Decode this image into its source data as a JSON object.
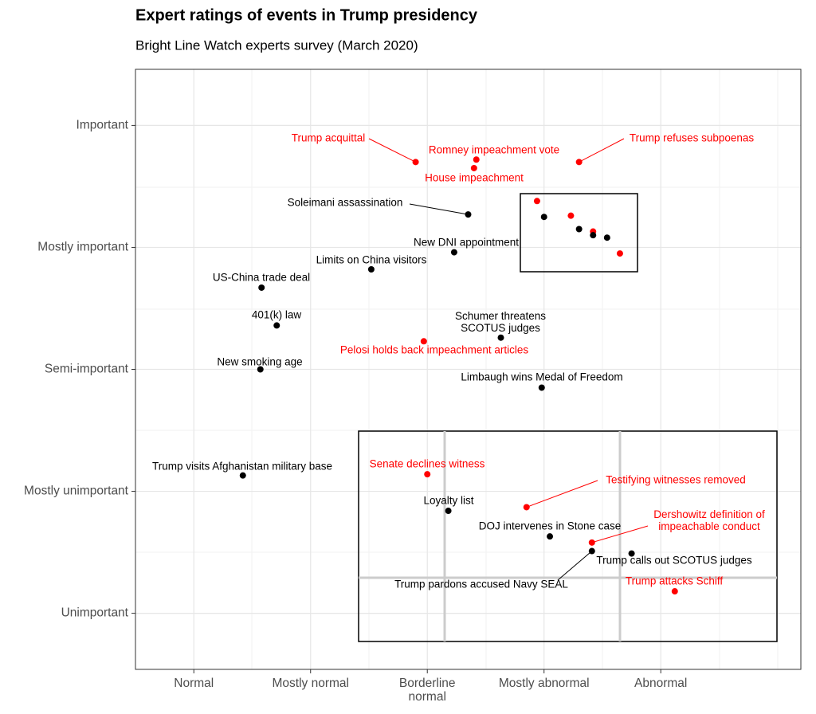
{
  "chart_data": {
    "type": "scatter",
    "title": "Expert ratings of events in Trump presidency",
    "subtitle": "Bright Line Watch experts survey (March 2020)",
    "xlim": [
      0.5,
      6.2
    ],
    "ylim": [
      0.54,
      5.46
    ],
    "grid": true,
    "xticks": [
      {
        "value": 1,
        "label": "Normal"
      },
      {
        "value": 2,
        "label": "Mostly normal"
      },
      {
        "value": 3,
        "label": "Borderline\nnormal"
      },
      {
        "value": 4,
        "label": "Mostly abnormal"
      },
      {
        "value": 5,
        "label": "Abnormal"
      }
    ],
    "yticks": [
      {
        "value": 1,
        "label": "Unimportant"
      },
      {
        "value": 2,
        "label": "Mostly unimportant"
      },
      {
        "value": 3,
        "label": "Semi-important"
      },
      {
        "value": 4,
        "label": "Mostly important"
      },
      {
        "value": 5,
        "label": "Important"
      }
    ],
    "series": [
      {
        "color": "#ff0000",
        "x": [
          2.9,
          3.42,
          3.4,
          4.3,
          2.97,
          3.0,
          3.85,
          4.41,
          5.12,
          3.94,
          4.23,
          4.42,
          4.65
        ],
        "y": [
          4.7,
          4.72,
          4.65,
          4.7,
          3.23,
          2.14,
          1.87,
          1.58,
          1.18,
          4.38,
          4.26,
          4.13,
          3.95
        ],
        "labels": [
          "Trump acquittal",
          "Romney impeachment vote",
          "House impeachment",
          "Trump refuses subpoenas",
          "Pelosi holds back impeachment articles",
          "Senate declines witness",
          "Testifying witnesses removed",
          "Dershowitz definition of\nimpeachable conduct",
          "Trump attacks Schiff",
          null,
          null,
          null,
          null
        ]
      },
      {
        "color": "#000000",
        "x": [
          3.35,
          3.23,
          2.52,
          1.58,
          1.71,
          3.63,
          1.57,
          3.98,
          1.42,
          3.18,
          4.05,
          4.41,
          4.75,
          4.0,
          4.3,
          4.42,
          4.54
        ],
        "y": [
          4.27,
          3.96,
          3.82,
          3.67,
          3.36,
          3.26,
          3.0,
          2.85,
          2.13,
          1.84,
          1.63,
          1.51,
          1.49,
          4.25,
          4.15,
          4.1,
          4.08
        ],
        "labels": [
          "Soleimani assassination",
          "New DNI appointment",
          "Limits on China visitors",
          "US-China trade deal",
          "401(k) law",
          "Schumer threatens\nSCOTUS judges",
          "New smoking age",
          "Limbaugh wins Medal of Freedom",
          "Trump visits Afghanistan military base",
          "Loyalty list",
          "DOJ intervenes in Stone case",
          "Trump pardons accused Navy SEAL",
          "Trump calls out SCOTUS judges",
          null,
          null,
          null,
          null
        ]
      }
    ]
  }
}
